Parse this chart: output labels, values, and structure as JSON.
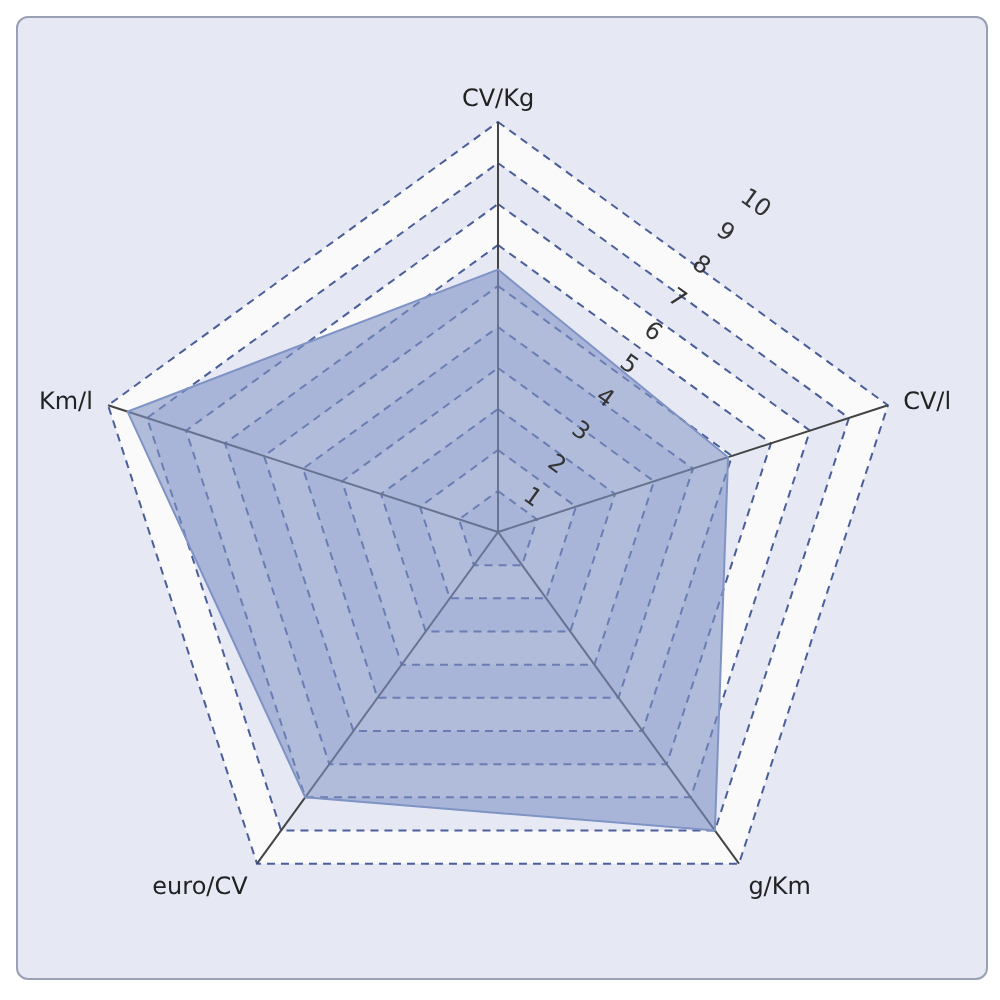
{
  "chart_data": {
    "type": "radar",
    "categories": [
      "CV/Kg",
      "CV/l",
      "g/Km",
      "euro/CV",
      "Km/l"
    ],
    "series": [
      {
        "color": "#7f93c4",
        "values": [
          6.4,
          5.9,
          9.0,
          8.0,
          9.5
        ]
      }
    ],
    "ylim": [
      0,
      10
    ],
    "yticks": [
      1,
      2,
      3,
      4,
      5,
      6,
      7,
      8,
      9,
      10
    ],
    "grid": true
  }
}
